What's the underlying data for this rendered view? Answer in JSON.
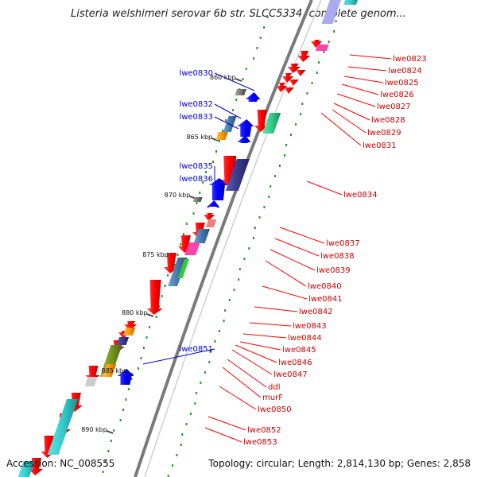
{
  "title": "Listeria welshimeri serovar 6b str. SLCC5334, complete genom...",
  "footer": {
    "accession": "Accession: NC_008555",
    "topology": "Topology: circular; Length: 2,814,130 bp; Genes: 2,858"
  },
  "scale_labels": [
    {
      "text": "860 kbp",
      "pos": 860
    },
    {
      "text": "865 kbp",
      "pos": 865
    },
    {
      "text": "870 kbp",
      "pos": 870
    },
    {
      "text": "875 kbp",
      "pos": 875
    },
    {
      "text": "880 kbp",
      "pos": 880
    },
    {
      "text": "885 kbp",
      "pos": 885
    },
    {
      "text": "890 kbp",
      "pos": 890
    }
  ],
  "genes_left": [
    {
      "name": "lwe0830",
      "color": "#0000cc"
    },
    {
      "name": "lwe0832",
      "color": "#0000cc"
    },
    {
      "name": "lwe0833",
      "color": "#0000cc"
    },
    {
      "name": "lwe0835",
      "color": "#0000cc"
    },
    {
      "name": "lwe0836",
      "color": "#0000cc"
    },
    {
      "name": "lwe0851",
      "color": "#0000cc"
    }
  ],
  "genes_right": [
    {
      "name": "lwe0823",
      "color": "#cc0000"
    },
    {
      "name": "lwe0824",
      "color": "#cc0000"
    },
    {
      "name": "lwe0825",
      "color": "#cc0000"
    },
    {
      "name": "lwe0826",
      "color": "#cc0000"
    },
    {
      "name": "lwe0827",
      "color": "#cc0000"
    },
    {
      "name": "lwe0828",
      "color": "#cc0000"
    },
    {
      "name": "lwe0829",
      "color": "#cc0000"
    },
    {
      "name": "lwe0831",
      "color": "#cc0000"
    },
    {
      "name": "lwe0834",
      "color": "#cc0000"
    },
    {
      "name": "lwe0837",
      "color": "#cc0000"
    },
    {
      "name": "lwe0838",
      "color": "#cc0000"
    },
    {
      "name": "lwe0839",
      "color": "#cc0000"
    },
    {
      "name": "lwe0840",
      "color": "#cc0000"
    },
    {
      "name": "lwe0841",
      "color": "#cc0000"
    },
    {
      "name": "lwe0842",
      "color": "#cc0000"
    },
    {
      "name": "lwe0843",
      "color": "#cc0000"
    },
    {
      "name": "lwe0844",
      "color": "#cc0000"
    },
    {
      "name": "lwe0845",
      "color": "#cc0000"
    },
    {
      "name": "lwe0846",
      "color": "#cc0000"
    },
    {
      "name": "lwe0847",
      "color": "#cc0000"
    },
    {
      "name": "ddl",
      "color": "#cc0000"
    },
    {
      "name": "murF",
      "color": "#cc0000"
    },
    {
      "name": "lwe0850",
      "color": "#cc0000"
    },
    {
      "name": "lwe0852",
      "color": "#cc0000"
    },
    {
      "name": "lwe0853",
      "color": "#cc0000"
    }
  ],
  "colors": {
    "backbone": "#777777",
    "forward_strand": "#ff0000",
    "reverse_strand": "#0000ff",
    "cds_cyan": "#33cccc",
    "cds_navy": "#3a3a8c",
    "cds_green": "#33cc88",
    "cds_pink": "#ff44aa",
    "cds_olive": "#779922",
    "cds_orange": "#ff9900",
    "cds_steel": "#4477aa",
    "gc_dots": "#229922"
  }
}
